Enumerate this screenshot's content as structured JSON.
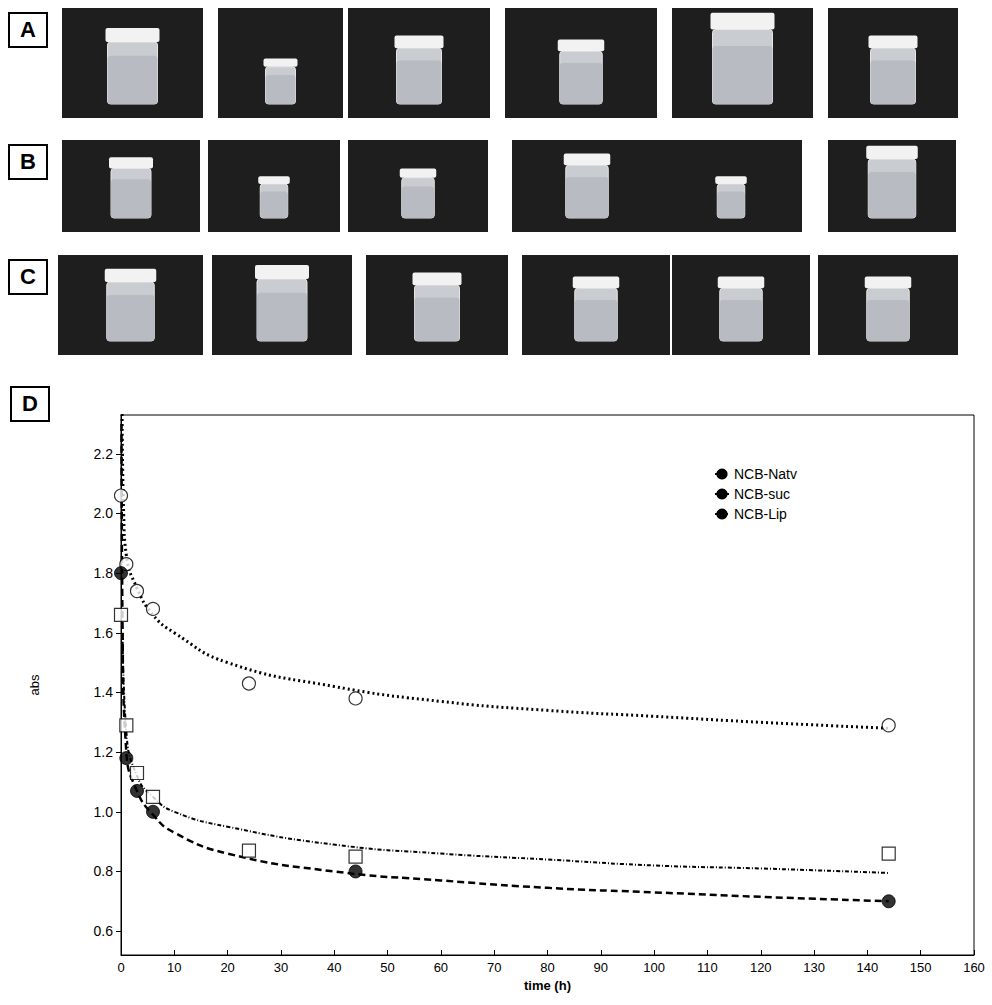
{
  "panel_labels": [
    "A",
    "B",
    "C"
  ],
  "chart_data": {
    "panel_label": "D",
    "type": "scatter",
    "x_label": "time (h)",
    "y_label": "abs",
    "xlim": [
      0,
      160
    ],
    "xticks": [
      0,
      10,
      20,
      30,
      40,
      50,
      60,
      70,
      80,
      90,
      100,
      110,
      120,
      130,
      140,
      150,
      160
    ],
    "ylim": [
      0.52,
      2.33
    ],
    "yticks": [
      0.6,
      0.8,
      {
        "value": 1,
        "label": "1.0"
      },
      1.2,
      1.4,
      1.6,
      1.8,
      {
        "value": 2,
        "label": "2.0"
      },
      2.2
    ],
    "grid": false,
    "legend": "upper right",
    "series": [
      {
        "name": "NCB-Natv",
        "marker": "open circle",
        "color": "#000000",
        "x": [
          0,
          1,
          3,
          6,
          24,
          44,
          144
        ],
        "values": [
          2.06,
          1.83,
          1.74,
          1.68,
          1.43,
          1.38,
          1.29
        ],
        "fit": {
          "line_style": "dotted",
          "x": [
            0.2,
            0.5,
            1,
            3,
            6,
            10,
            20,
            40,
            60,
            80,
            100,
            120,
            144
          ],
          "values": [
            2.35,
            2.0,
            1.86,
            1.75,
            1.66,
            1.6,
            1.5,
            1.42,
            1.37,
            1.34,
            1.32,
            1.3,
            1.28
          ]
        }
      },
      {
        "name": "NCB-suc",
        "marker": "filled circle",
        "color": "#000000",
        "x": [
          0,
          1,
          3,
          6,
          44,
          144
        ],
        "values": [
          1.8,
          1.18,
          1.07,
          1.0,
          0.8,
          0.7
        ],
        "fit": {
          "line_style": "dashed",
          "x": [
            0.1,
            0.3,
            1,
            3,
            6,
            10,
            20,
            40,
            60,
            80,
            100,
            120,
            144
          ],
          "values": [
            2.3,
            1.6,
            1.2,
            1.07,
            0.99,
            0.93,
            0.86,
            0.8,
            0.77,
            0.745,
            0.73,
            0.715,
            0.7
          ]
        }
      },
      {
        "name": "NCB-Lip",
        "marker": "open square",
        "color": "#000000",
        "x": [
          0,
          1,
          3,
          6,
          24,
          44,
          144
        ],
        "values": [
          1.66,
          1.29,
          1.13,
          1.05,
          0.87,
          0.85,
          0.86
        ],
        "fit": {
          "line_style": "dash-dot",
          "x": [
            0.3,
            1,
            3,
            6,
            10,
            20,
            40,
            60,
            80,
            100,
            120,
            144
          ],
          "values": [
            1.6,
            1.27,
            1.12,
            1.05,
            1.0,
            0.95,
            0.89,
            0.86,
            0.84,
            0.82,
            0.81,
            0.795
          ]
        }
      }
    ]
  }
}
